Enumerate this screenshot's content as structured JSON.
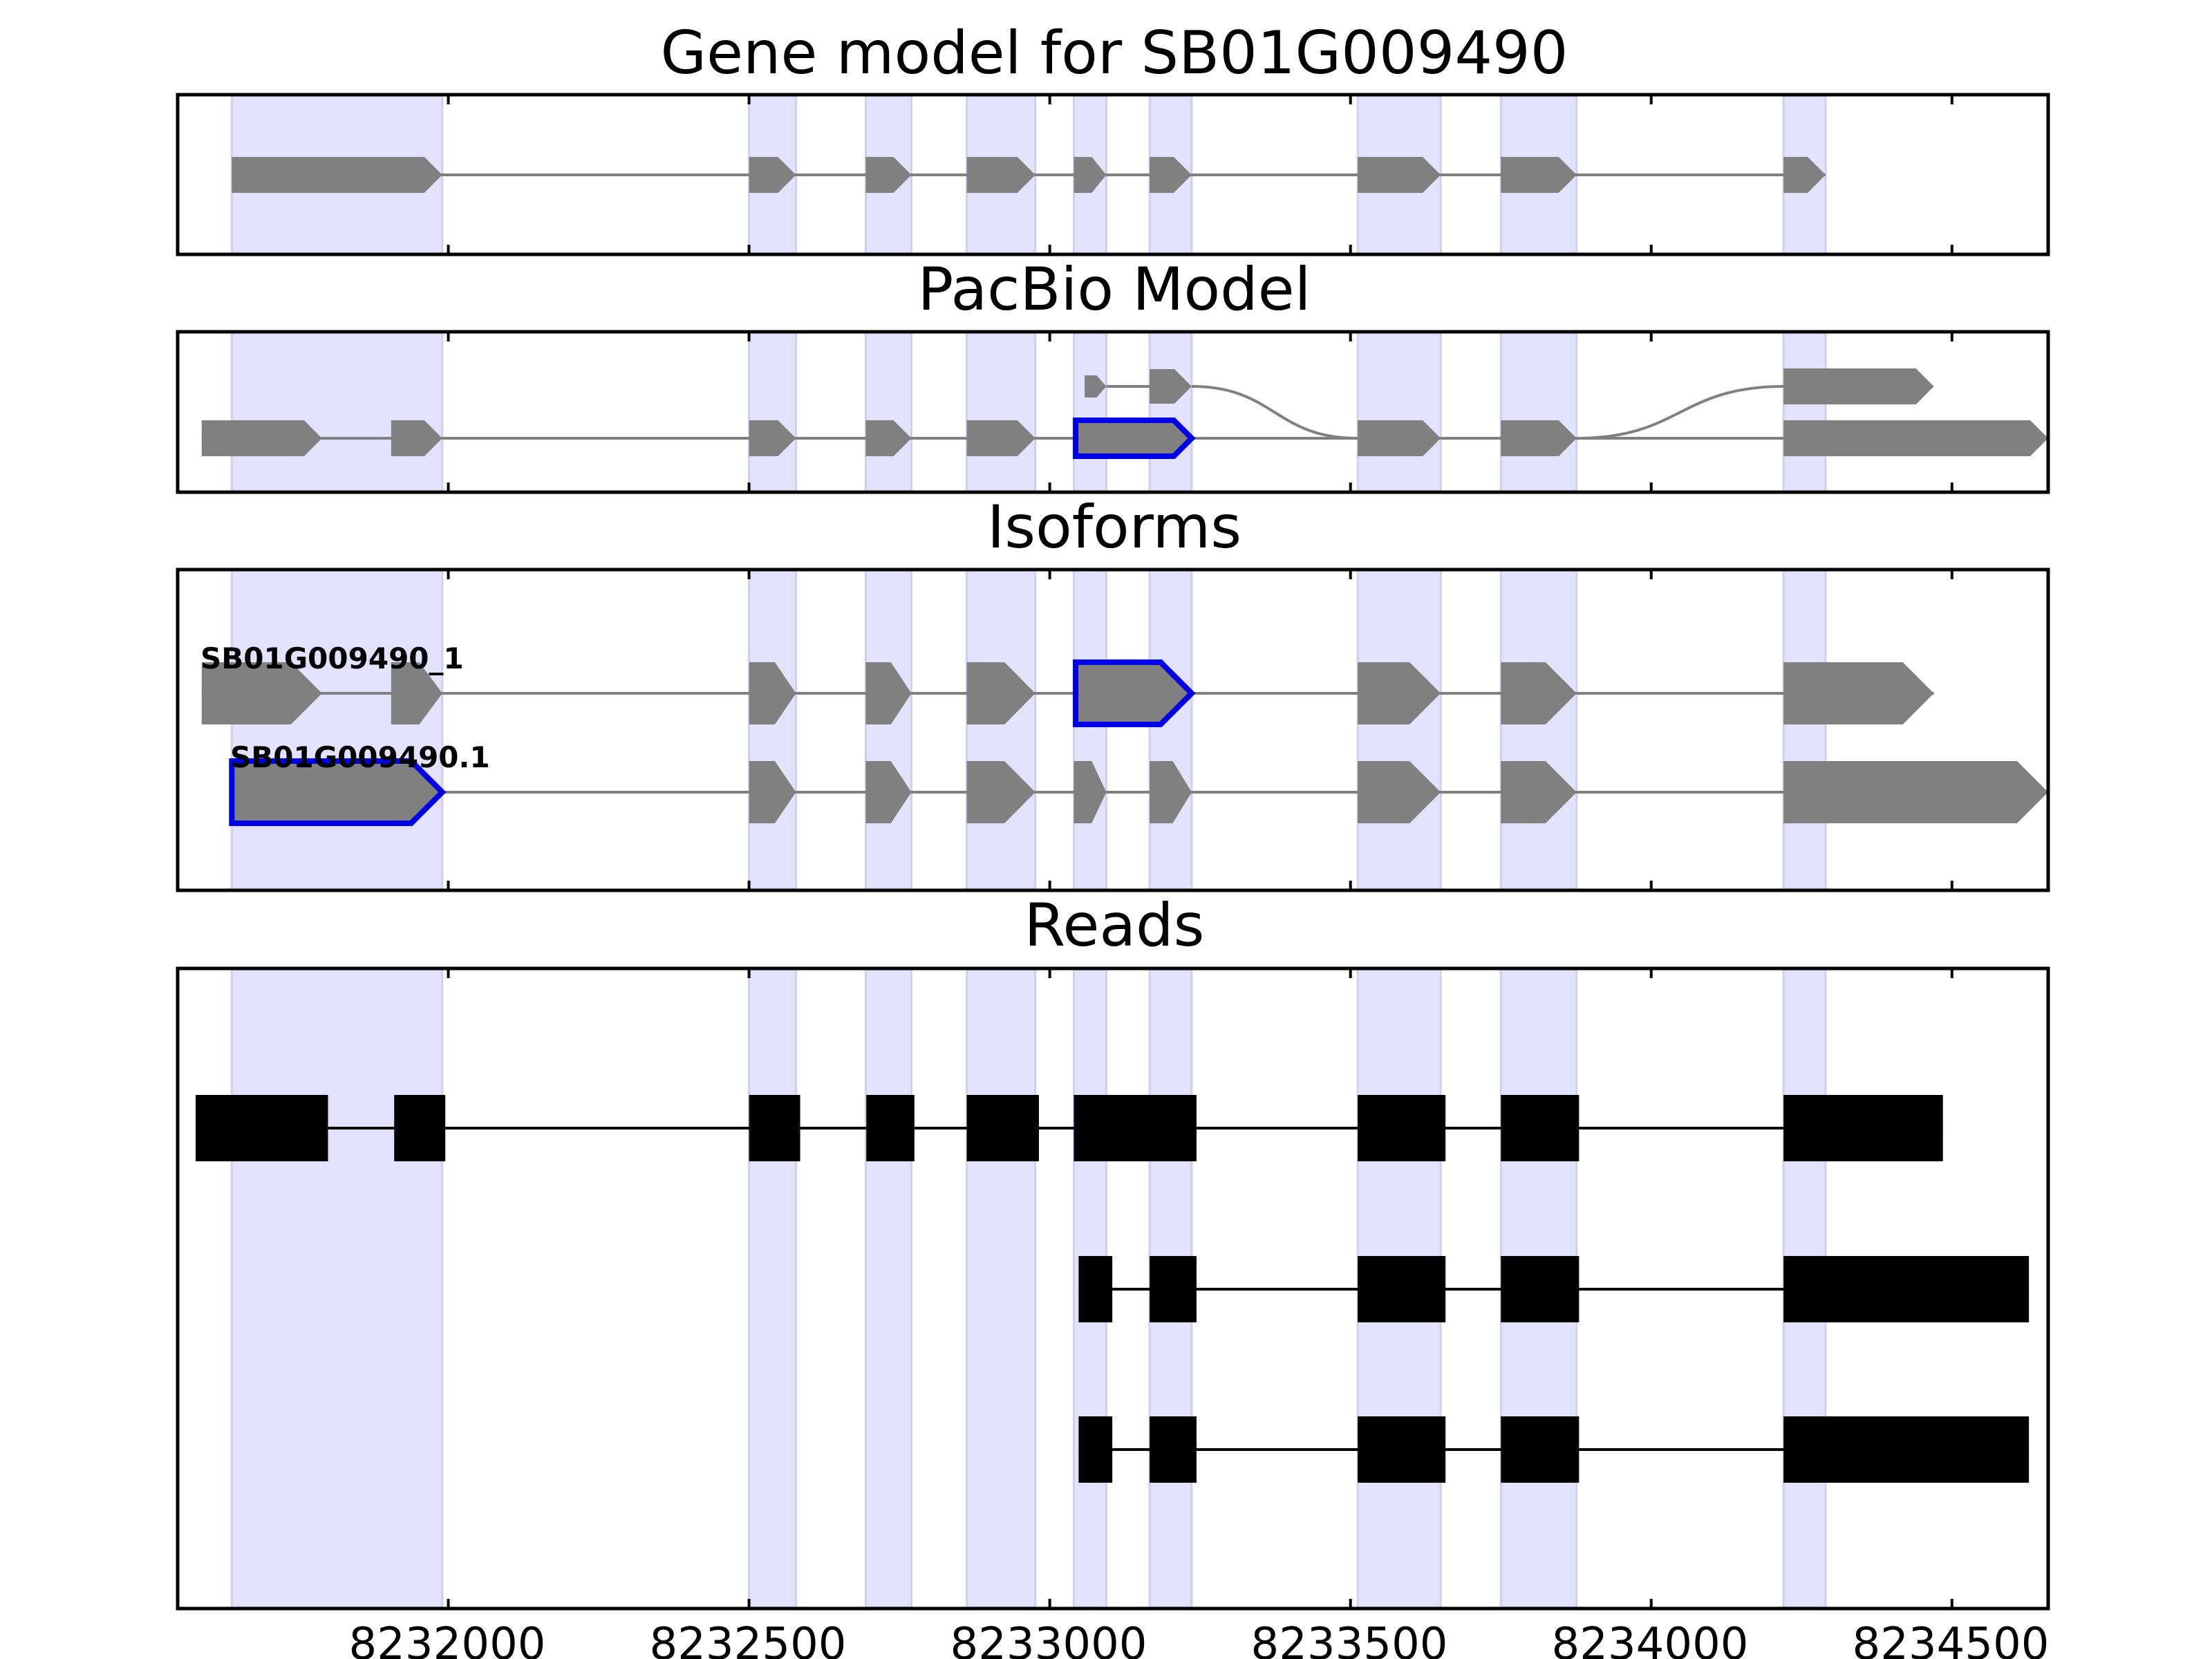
{
  "chart_data": {
    "type": "gene_structure",
    "xlim": [
      8231550,
      8234660
    ],
    "x_ticks": [
      8232000,
      8232500,
      8233000,
      8233500,
      8234000,
      8234500
    ],
    "x_tick_labels": [
      "8232000",
      "8232500",
      "8233000",
      "8233500",
      "8234000",
      "8234500"
    ],
    "grid": false,
    "highlight_color": "#e2e2fc",
    "feature_color": "#808080",
    "selected_color": "#0000e6",
    "read_color": "#000000",
    "highlight_regions": [
      [
        8231640,
        8231990
      ],
      [
        8232500,
        8232578
      ],
      [
        8232694,
        8232770
      ],
      [
        8232862,
        8232976
      ],
      [
        8233040,
        8233094
      ],
      [
        8233166,
        8233236
      ],
      [
        8233512,
        8233650
      ],
      [
        8233750,
        8233876
      ],
      [
        8234220,
        8234290
      ]
    ],
    "panels": [
      {
        "title": "Gene model for SB01G009490",
        "tracks": [
          {
            "strand": "+",
            "exons": [
              [
                8231640,
                8231990
              ],
              [
                8232500,
                8232578
              ],
              [
                8232694,
                8232770
              ],
              [
                8232862,
                8232976
              ],
              [
                8233040,
                8233094
              ],
              [
                8233166,
                8233236
              ],
              [
                8233512,
                8233650
              ],
              [
                8233750,
                8233876
              ],
              [
                8234220,
                8234290
              ]
            ]
          }
        ]
      },
      {
        "title": "PacBio Model",
        "tracks": [
          {
            "strand": "+",
            "exons": [
              [
                8231590,
                8231790
              ],
              [
                8231905,
                8231990
              ],
              [
                8232500,
                8232578
              ],
              [
                8232694,
                8232770
              ],
              [
                8232862,
                8232976
              ],
              [
                8233043,
                8233236
              ],
              [
                8233512,
                8233650
              ],
              [
                8233750,
                8233876
              ],
              [
                8234220,
                8234660
              ]
            ],
            "selected_exon": 5
          },
          {
            "strand": "+",
            "exons": [
              [
                8233058,
                8233094
              ],
              [
                8233166,
                8233236
              ],
              [
                8234220,
                8234470
              ]
            ],
            "joins_to_main": true
          }
        ]
      },
      {
        "title": "Isoforms",
        "tracks": [
          {
            "name": "SB01G009490_1",
            "strand": "+",
            "exons": [
              [
                8231590,
                8231790
              ],
              [
                8231905,
                8231990
              ],
              [
                8232500,
                8232578
              ],
              [
                8232694,
                8232770
              ],
              [
                8232862,
                8232976
              ],
              [
                8233043,
                8233236
              ],
              [
                8233512,
                8233650
              ],
              [
                8233750,
                8233876
              ],
              [
                8234220,
                8234470
              ]
            ],
            "selected_exon": 5
          },
          {
            "name": "SB01G009490.1",
            "strand": "+",
            "exons": [
              [
                8231640,
                8231990
              ],
              [
                8232500,
                8232578
              ],
              [
                8232694,
                8232770
              ],
              [
                8232862,
                8232976
              ],
              [
                8233040,
                8233094
              ],
              [
                8233166,
                8233236
              ],
              [
                8233512,
                8233650
              ],
              [
                8233750,
                8233876
              ],
              [
                8234220,
                8234660
              ]
            ],
            "selected_exon": 0
          }
        ]
      },
      {
        "title": "Reads",
        "tracks": [
          {
            "exons": [
              [
                8231580,
                8231800
              ],
              [
                8231910,
                8231995
              ],
              [
                8232500,
                8232585
              ],
              [
                8232695,
                8232775
              ],
              [
                8232862,
                8232982
              ],
              [
                8233040,
                8233244
              ],
              [
                8233512,
                8233658
              ],
              [
                8233750,
                8233880
              ],
              [
                8234220,
                8234485
              ]
            ]
          },
          {
            "exons": [
              [
                8233048,
                8233104
              ],
              [
                8233166,
                8233244
              ],
              [
                8233512,
                8233658
              ],
              [
                8233750,
                8233880
              ],
              [
                8234220,
                8234628
              ]
            ]
          },
          {
            "exons": [
              [
                8233048,
                8233104
              ],
              [
                8233166,
                8233244
              ],
              [
                8233512,
                8233658
              ],
              [
                8233750,
                8233880
              ],
              [
                8234220,
                8234628
              ]
            ]
          }
        ]
      }
    ]
  }
}
